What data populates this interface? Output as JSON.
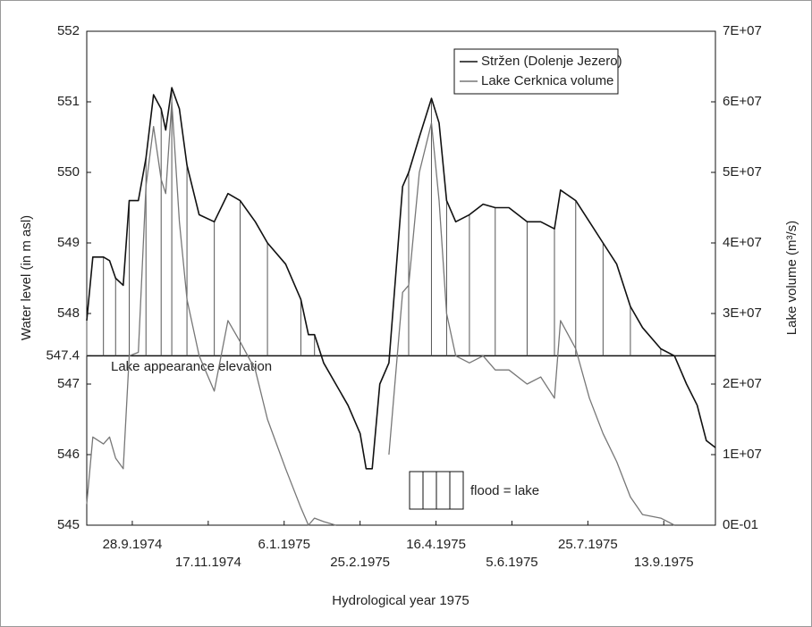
{
  "chart_data": {
    "type": "line",
    "x_label": "Hydrological year 1975",
    "y_label": "Water level (in m asl)",
    "y2_label": "Lake volume (m³/s)",
    "threshold": 547.4,
    "threshold_label": "Lake appearance  elevation",
    "annotation": "flood = lake",
    "legend": "upper right",
    "xlim": [
      "1974-08-29",
      "1975-10-17"
    ],
    "xticks": [
      {
        "value": "1974-09-28",
        "label": "28.9.1974"
      },
      {
        "value": "1974-11-17",
        "label": "17.11.1974"
      },
      {
        "value": "1975-01-06",
        "label": "6.1.1975"
      },
      {
        "value": "1975-02-25",
        "label": "25.2.1975"
      },
      {
        "value": "1975-04-16",
        "label": "16.4.1975"
      },
      {
        "value": "1975-06-05",
        "label": "5.6.1975"
      },
      {
        "value": "1975-07-25",
        "label": "25.7.1975"
      },
      {
        "value": "1975-09-13",
        "label": "13.9.1975"
      }
    ],
    "ylim": [
      545,
      552
    ],
    "yticks": [
      545,
      546,
      547,
      547.4,
      548,
      549,
      550,
      551,
      552
    ],
    "y2lim": [
      0,
      70000000
    ],
    "y2ticks": [
      {
        "value": 0,
        "label": "0E-01"
      },
      {
        "value": 10000000,
        "label": "1E+07"
      },
      {
        "value": 20000000,
        "label": "2E+07"
      },
      {
        "value": 30000000,
        "label": "3E+07"
      },
      {
        "value": 40000000,
        "label": "4E+07"
      },
      {
        "value": 50000000,
        "label": "5E+07"
      },
      {
        "value": 60000000,
        "label": "6E+07"
      },
      {
        "value": 70000000,
        "label": "7E+07"
      }
    ],
    "x": [
      "1974-08-29",
      "1974-09-02",
      "1974-09-09",
      "1974-09-13",
      "1974-09-17",
      "1974-09-22",
      "1974-09-26",
      "1974-10-02",
      "1974-10-07",
      "1974-10-12",
      "1974-10-17",
      "1974-10-20",
      "1974-10-24",
      "1974-10-29",
      "1974-11-03",
      "1974-11-11",
      "1974-11-21",
      "1974-11-30",
      "1974-12-08",
      "1974-12-18",
      "1974-12-26",
      "1975-01-07",
      "1975-01-17",
      "1975-01-22",
      "1975-01-26",
      "1975-02-01",
      "1975-02-09",
      "1975-02-17",
      "1975-02-25",
      "1975-03-01",
      "1975-03-05",
      "1975-03-10",
      "1975-03-16",
      "1975-03-25",
      "1975-03-29",
      "1975-04-05",
      "1975-04-13",
      "1975-04-18",
      "1975-04-23",
      "1975-04-29",
      "1975-05-08",
      "1975-05-17",
      "1975-05-25",
      "1975-06-03",
      "1975-06-15",
      "1975-06-24",
      "1975-07-03",
      "1975-07-07",
      "1975-07-17",
      "1975-07-26",
      "1975-08-04",
      "1975-08-13",
      "1975-08-22",
      "1975-08-30",
      "1975-09-11",
      "1975-09-20",
      "1975-09-28",
      "1975-10-05",
      "1975-10-11",
      "1975-10-17"
    ],
    "series": [
      {
        "name": "Stržen (Dolenje Jezero)",
        "color": "#111111",
        "values": [
          547.9,
          548.8,
          548.8,
          548.75,
          548.5,
          548.4,
          549.6,
          549.6,
          550.2,
          551.1,
          550.9,
          550.6,
          551.2,
          550.9,
          550.1,
          549.4,
          549.3,
          549.7,
          549.6,
          549.3,
          549.0,
          548.7,
          548.2,
          547.7,
          547.7,
          547.3,
          547.0,
          546.7,
          546.3,
          545.8,
          545.8,
          547.0,
          547.3,
          549.8,
          550.0,
          550.5,
          551.05,
          550.7,
          549.6,
          549.3,
          549.4,
          549.55,
          549.5,
          549.5,
          549.3,
          549.3,
          549.2,
          549.75,
          549.6,
          549.3,
          549.0,
          548.7,
          548.1,
          547.8,
          547.5,
          547.4,
          547.0,
          546.7,
          546.2,
          546.1
        ]
      },
      {
        "name": "Lake Cerknica volume",
        "color": "#777777",
        "axis": "y2",
        "values": [
          3000000,
          12500000,
          11500000,
          12500000,
          9500000,
          8000000,
          24000000,
          24500000,
          48000000,
          56500000,
          49000000,
          47000000,
          60000000,
          43000000,
          32000000,
          24000000,
          19000000,
          29000000,
          26000000,
          22000000,
          15000000,
          8000000,
          2500000,
          0,
          1000000,
          500000,
          0,
          null,
          null,
          null,
          null,
          null,
          10000000,
          33000000,
          34000000,
          50000000,
          57000000,
          46000000,
          30000000,
          24000000,
          23000000,
          24000000,
          22000000,
          22000000,
          20000000,
          21000000,
          18000000,
          29000000,
          25000000,
          18000000,
          13000000,
          9000000,
          4000000,
          1500000,
          1000000,
          0,
          null,
          null,
          null,
          null
        ]
      }
    ]
  }
}
